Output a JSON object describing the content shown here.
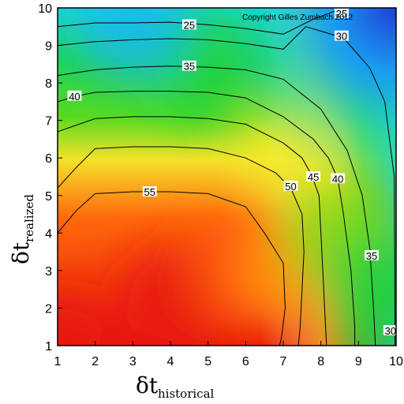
{
  "chart_data": {
    "type": "heatmap",
    "subtype": "filled-contour",
    "copyright": "Copyright Gilles Zumbach 2012",
    "xlabel": {
      "main": "δt",
      "sub": "historical"
    },
    "ylabel": {
      "main": "δt",
      "sub": "realized"
    },
    "xlim": [
      1,
      10
    ],
    "ylim": [
      1,
      10
    ],
    "x_ticks": [
      1,
      2,
      3,
      4,
      5,
      6,
      7,
      8,
      9,
      10
    ],
    "y_ticks": [
      1,
      2,
      3,
      4,
      5,
      6,
      7,
      8,
      9,
      10
    ],
    "grid": false,
    "colormap": [
      "#e8140c",
      "#ff5a0c",
      "#ff9a10",
      "#f3ea28",
      "#7cdf1c",
      "#1ed23c",
      "#13dcb4",
      "#18b8f0",
      "#1f48d8"
    ],
    "contour_levels": [
      25,
      30,
      35,
      40,
      45,
      50,
      55
    ],
    "contour_labels": [
      {
        "text": "25",
        "x": 4.5,
        "y": 9.55
      },
      {
        "text": "35",
        "x": 4.5,
        "y": 8.45
      },
      {
        "text": "40",
        "x": 1.45,
        "y": 7.65
      },
      {
        "text": "55",
        "x": 3.45,
        "y": 5.1
      },
      {
        "text": "50",
        "x": 7.2,
        "y": 5.25
      },
      {
        "text": "45",
        "x": 7.8,
        "y": 5.5
      },
      {
        "text": "40",
        "x": 8.45,
        "y": 5.45
      },
      {
        "text": "30",
        "x": 8.55,
        "y": 9.25
      },
      {
        "text": "35",
        "x": 9.35,
        "y": 3.4
      },
      {
        "text": "30",
        "x": 9.85,
        "y": 1.4
      },
      {
        "text": "25",
        "x": 8.55,
        "y": 9.85
      }
    ],
    "contours": [
      {
        "level": 25,
        "points": [
          [
            1,
            9.5
          ],
          [
            2,
            9.6
          ],
          [
            3,
            9.6
          ],
          [
            4,
            9.62
          ],
          [
            5,
            9.55
          ],
          [
            6,
            9.45
          ],
          [
            7,
            9.3
          ],
          [
            7.8,
            9.7
          ],
          [
            8.6,
            10
          ]
        ]
      },
      {
        "level": 30,
        "points": [
          [
            1,
            9.0
          ],
          [
            2,
            9.1
          ],
          [
            3,
            9.15
          ],
          [
            4,
            9.18
          ],
          [
            5,
            9.15
          ],
          [
            6,
            9.05
          ],
          [
            7,
            8.9
          ],
          [
            7.6,
            9.5
          ],
          [
            8.6,
            9.2
          ],
          [
            9.3,
            8.4
          ],
          [
            9.7,
            7.5
          ],
          [
            9.95,
            5.5
          ],
          [
            9.96,
            3.5
          ],
          [
            9.97,
            1
          ]
        ]
      },
      {
        "level": 35,
        "points": [
          [
            1,
            8.2
          ],
          [
            2,
            8.35
          ],
          [
            3,
            8.42
          ],
          [
            4,
            8.45
          ],
          [
            5,
            8.42
          ],
          [
            6,
            8.35
          ],
          [
            7,
            8.1
          ],
          [
            8,
            7.3
          ],
          [
            8.7,
            6.2
          ],
          [
            9.1,
            5.0
          ],
          [
            9.3,
            3.6
          ],
          [
            9.4,
            2.0
          ],
          [
            9.45,
            1
          ]
        ]
      },
      {
        "level": 40,
        "points": [
          [
            1,
            7.5
          ],
          [
            1.5,
            7.65
          ],
          [
            2,
            7.75
          ],
          [
            3,
            7.78
          ],
          [
            4,
            7.78
          ],
          [
            5,
            7.75
          ],
          [
            6,
            7.6
          ],
          [
            7,
            7.1
          ],
          [
            7.8,
            6.5
          ],
          [
            8.2,
            6.0
          ],
          [
            8.45,
            5.45
          ],
          [
            8.6,
            4.5
          ],
          [
            8.8,
            3.0
          ],
          [
            8.9,
            1.5
          ],
          [
            8.9,
            1
          ]
        ]
      },
      {
        "level": 45,
        "points": [
          [
            1,
            6.7
          ],
          [
            2,
            7.05
          ],
          [
            3,
            7.1
          ],
          [
            4,
            7.1
          ],
          [
            5,
            7.05
          ],
          [
            6,
            6.9
          ],
          [
            7,
            6.4
          ],
          [
            7.5,
            6.0
          ],
          [
            7.75,
            5.55
          ],
          [
            7.95,
            5.0
          ],
          [
            8.0,
            4.0
          ],
          [
            8.05,
            3.0
          ],
          [
            8.1,
            2.0
          ],
          [
            8.15,
            1
          ]
        ]
      },
      {
        "level": 50,
        "points": [
          [
            1,
            5.2
          ],
          [
            1.5,
            5.75
          ],
          [
            2,
            6.25
          ],
          [
            3,
            6.3
          ],
          [
            4,
            6.3
          ],
          [
            5,
            6.25
          ],
          [
            6,
            6.0
          ],
          [
            6.8,
            5.6
          ],
          [
            7.2,
            5.2
          ],
          [
            7.5,
            4.5
          ],
          [
            7.55,
            3.5
          ],
          [
            7.5,
            2.5
          ],
          [
            7.45,
            1.5
          ],
          [
            7.4,
            1
          ]
        ]
      },
      {
        "level": 55,
        "points": [
          [
            1,
            4.0
          ],
          [
            1.5,
            4.6
          ],
          [
            2,
            5.05
          ],
          [
            3,
            5.1
          ],
          [
            4,
            5.1
          ],
          [
            5,
            5.05
          ],
          [
            6,
            4.7
          ],
          [
            6.5,
            4.0
          ],
          [
            7.0,
            3.2
          ],
          [
            7.05,
            2.0
          ],
          [
            6.95,
            1.2
          ],
          [
            6.9,
            1
          ]
        ]
      }
    ],
    "color_blobs": [
      {
        "x": 1.0,
        "y": 1.0,
        "value": 60
      },
      {
        "x": 4.0,
        "y": 2.2,
        "value": 62
      },
      {
        "x": 6.0,
        "y": 3.0,
        "value": 58
      },
      {
        "x": 7.3,
        "y": 3.0,
        "value": 51
      },
      {
        "x": 7.3,
        "y": 6.0,
        "value": 46
      },
      {
        "x": 8.5,
        "y": 4.0,
        "value": 40
      },
      {
        "x": 9.5,
        "y": 2.5,
        "value": 32
      },
      {
        "x": 5.0,
        "y": 8.5,
        "value": 35
      },
      {
        "x": 3.0,
        "y": 9.6,
        "value": 24
      },
      {
        "x": 9.7,
        "y": 9.5,
        "value": 18
      }
    ]
  }
}
